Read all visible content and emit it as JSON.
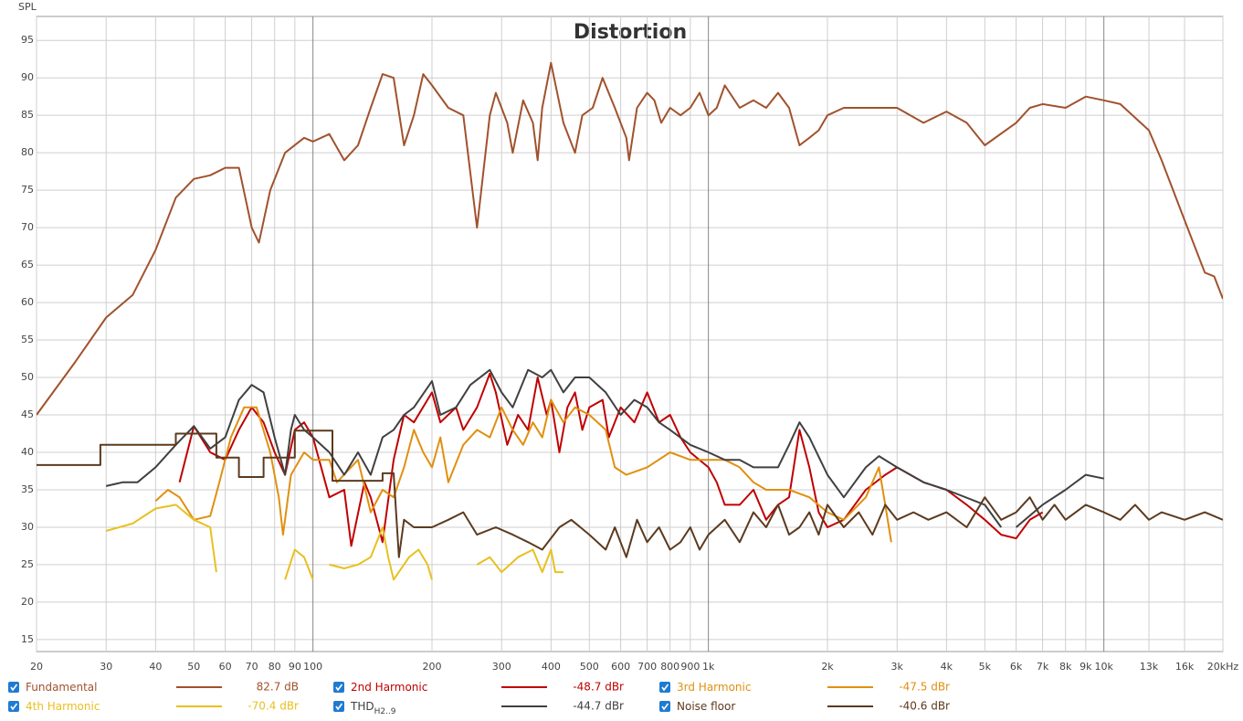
{
  "chart_data": {
    "type": "line",
    "title": "Distortion",
    "y_label": "SPL",
    "x_scale": "log",
    "xlim": [
      20,
      20000
    ],
    "ylim": [
      13.4,
      98.2
    ],
    "xticks": [
      20,
      30,
      40,
      50,
      60,
      70,
      80,
      90,
      100,
      200,
      300,
      400,
      500,
      600,
      700,
      800,
      900,
      {
        "value": 1000,
        "label": "1k"
      },
      {
        "value": 2000,
        "label": "2k"
      },
      {
        "value": 3000,
        "label": "3k"
      },
      {
        "value": 4000,
        "label": "4k"
      },
      {
        "value": 5000,
        "label": "5k"
      },
      {
        "value": 6000,
        "label": "6k"
      },
      {
        "value": 7000,
        "label": "7k"
      },
      {
        "value": 8000,
        "label": "8k"
      },
      {
        "value": 9000,
        "label": "9k"
      },
      {
        "value": 10000,
        "label": "10k"
      },
      {
        "value": 13000,
        "label": "13k"
      },
      {
        "value": 16000,
        "label": "16k"
      },
      {
        "value": 20000,
        "label": "20kHz"
      }
    ],
    "yticks": [
      15,
      20,
      25,
      30,
      35,
      40,
      45,
      50,
      55,
      60,
      65,
      70,
      75,
      80,
      85,
      90,
      95
    ],
    "grid": true,
    "series": [
      {
        "name": "Fundamental",
        "color": "#a0522d",
        "legend_value": "82.7 dB",
        "x": [
          20,
          25,
          30,
          35,
          40,
          45,
          50,
          55,
          60,
          65,
          70,
          73,
          78,
          85,
          95,
          100,
          110,
          120,
          130,
          140,
          150,
          160,
          170,
          180,
          190,
          200,
          220,
          240,
          260,
          280,
          290,
          310,
          320,
          340,
          360,
          370,
          380,
          400,
          430,
          460,
          480,
          510,
          540,
          580,
          620,
          630,
          660,
          700,
          730,
          760,
          800,
          850,
          900,
          950,
          1000,
          1050,
          1100,
          1200,
          1300,
          1400,
          1500,
          1600,
          1700,
          1800,
          1900,
          2000,
          2200,
          2500,
          3000,
          3500,
          4000,
          4500,
          5000,
          6000,
          6500,
          7000,
          8000,
          9000,
          10000,
          11000,
          13000,
          14000,
          16000,
          18000,
          19000,
          20000
        ],
        "values": [
          45,
          52,
          58,
          61,
          67,
          74,
          76.5,
          77,
          78,
          78,
          70,
          68,
          75,
          80,
          82,
          81.5,
          82.5,
          79,
          81,
          86,
          90.5,
          90,
          81,
          85,
          90.5,
          89,
          86,
          85,
          70,
          85,
          88,
          84,
          80,
          87,
          84,
          79,
          86,
          92,
          84,
          80,
          85,
          86,
          90,
          86,
          82,
          79,
          86,
          88,
          87,
          84,
          86,
          85,
          86,
          88,
          85,
          86,
          89,
          86,
          87,
          86,
          88,
          86,
          81,
          82,
          83,
          85,
          86,
          86,
          86,
          84,
          85.5,
          84,
          81,
          84,
          86,
          86.5,
          86,
          87.5,
          87,
          86.5,
          83,
          79,
          71,
          64,
          63.5,
          60.5
        ]
      },
      {
        "name": "2nd Harmonic",
        "color": "#c00000",
        "legend_value": "-48.7 dBr",
        "x": [
          46,
          50,
          55,
          60,
          65,
          70,
          75,
          80,
          85,
          90,
          95,
          100,
          110,
          120,
          125,
          135,
          140,
          150,
          160,
          170,
          180,
          200,
          210,
          230,
          240,
          260,
          280,
          290,
          310,
          330,
          350,
          370,
          390,
          400,
          420,
          440,
          460,
          480,
          500,
          540,
          560,
          600,
          650,
          700,
          750,
          800,
          850,
          900,
          1000,
          1050,
          1100,
          1200,
          1300,
          1400,
          1500,
          1600,
          1700,
          1800,
          1900,
          2000,
          2200,
          2500,
          2800,
          3000,
          3500,
          4000,
          4500,
          5000,
          5500,
          6000,
          6500,
          7000
        ],
        "values": [
          36,
          43.5,
          40,
          39,
          43,
          46,
          44,
          40,
          37,
          43,
          44,
          42,
          34,
          35,
          27.5,
          36,
          34,
          28,
          39,
          45,
          44,
          48,
          44,
          46,
          43,
          46,
          50.5,
          48,
          41,
          45,
          43,
          50,
          45,
          47,
          40,
          46,
          48,
          43,
          46,
          47,
          42,
          46,
          44,
          48,
          44,
          45,
          42,
          40,
          38,
          36,
          33,
          33,
          35,
          31,
          33,
          34,
          43,
          38,
          32,
          30,
          31,
          35,
          37,
          38,
          36,
          35,
          33,
          31,
          29,
          28.5,
          31,
          32
        ]
      },
      {
        "name": "3rd Harmonic",
        "color": "#e09010",
        "legend_value": "-47.5 dBr",
        "x": [
          40,
          43,
          46,
          50,
          55,
          58,
          62,
          67,
          72,
          78,
          82,
          84,
          88,
          95,
          100,
          110,
          115,
          130,
          140,
          150,
          160,
          170,
          180,
          190,
          200,
          210,
          220,
          240,
          260,
          280,
          300,
          320,
          340,
          360,
          380,
          400,
          430,
          460,
          500,
          550,
          580,
          620,
          700,
          800,
          900,
          1000,
          1100,
          1200,
          1300,
          1400,
          1600,
          1800,
          2000,
          2200,
          2500,
          2700,
          2800,
          2900
        ],
        "values": [
          33.5,
          35,
          34,
          31,
          31.5,
          36,
          42,
          46,
          46,
          40,
          34,
          29,
          37,
          40,
          39,
          39,
          36,
          39,
          32,
          35,
          34,
          38,
          43,
          40,
          38,
          42,
          36,
          41,
          43,
          42,
          46,
          43,
          41,
          44,
          42,
          47,
          44,
          46,
          45,
          43,
          38,
          37,
          38,
          40,
          39,
          39,
          39,
          38,
          36,
          35,
          35,
          34,
          32,
          31,
          34,
          38,
          33,
          28
        ]
      },
      {
        "name": "4th Harmonic",
        "color": "#e8c020",
        "legend_value": "-70.4 dBr",
        "x": [
          30,
          35,
          40,
          45,
          50,
          55,
          57,
          70,
          85,
          90,
          95,
          100,
          105,
          110,
          120,
          130,
          140,
          150,
          155,
          160,
          175,
          185,
          195,
          200,
          230,
          260,
          280,
          300,
          330,
          360,
          380,
          400,
          410,
          430
        ],
        "values": [
          29.5,
          30.5,
          32.5,
          33,
          31,
          30,
          24,
          null,
          23,
          27,
          26,
          23,
          null,
          25,
          24.5,
          25,
          26,
          30,
          26,
          23,
          26,
          27,
          25,
          23,
          null,
          25,
          26,
          24,
          26,
          27,
          24,
          27,
          24,
          24
        ]
      },
      {
        "name": "THD",
        "name_sub": "H2..9",
        "color": "#404040",
        "legend_value": "-44.7 dBr",
        "x": [
          30,
          33,
          36,
          40,
          45,
          50,
          55,
          60,
          65,
          70,
          75,
          80,
          85,
          88,
          90,
          95,
          100,
          110,
          120,
          130,
          140,
          150,
          160,
          170,
          180,
          200,
          210,
          230,
          250,
          280,
          300,
          320,
          350,
          380,
          400,
          430,
          460,
          500,
          550,
          600,
          650,
          700,
          750,
          800,
          900,
          1000,
          1100,
          1200,
          1300,
          1400,
          1500,
          1600,
          1700,
          1800,
          2000,
          2200,
          2500,
          2700,
          3000,
          3500,
          4000,
          5000,
          5500,
          5800,
          6000,
          7000,
          8000,
          9000,
          10000
        ],
        "values": [
          35.5,
          36,
          36,
          38,
          41,
          43.5,
          40.5,
          42,
          47,
          49,
          48,
          42,
          37,
          43,
          45,
          43,
          42,
          40,
          37,
          40,
          37,
          42,
          43,
          45,
          46,
          49.5,
          45,
          46,
          49,
          51,
          48,
          46,
          51,
          50,
          51,
          48,
          50,
          50,
          48,
          45,
          47,
          46,
          44,
          43,
          41,
          40,
          39,
          39,
          38,
          38,
          38,
          41,
          44,
          42,
          37,
          34,
          38,
          39.5,
          38,
          36,
          35,
          33,
          30,
          null,
          30,
          33,
          35,
          37,
          36.5
        ]
      },
      {
        "name": "Noise floor",
        "color": "#5c3a1e",
        "legend_value": "-40.6 dBr",
        "x": [
          20,
          29,
          29,
          45,
          45,
          57,
          57,
          65,
          65,
          75,
          75,
          90,
          90,
          112,
          112,
          150,
          150,
          160,
          165,
          170,
          180,
          200,
          220,
          240,
          260,
          290,
          320,
          350,
          380,
          420,
          450,
          500,
          550,
          580,
          620,
          660,
          700,
          750,
          800,
          850,
          900,
          950,
          1000,
          1100,
          1200,
          1300,
          1400,
          1500,
          1600,
          1700,
          1800,
          1900,
          2000,
          2200,
          2400,
          2600,
          2800,
          3000,
          3300,
          3600,
          4000,
          4500,
          5000,
          5500,
          6000,
          6500,
          7000,
          7500,
          8000,
          9000,
          10000,
          11000,
          12000,
          13000,
          14000,
          16000,
          18000,
          20000
        ],
        "values": [
          38.3,
          38.3,
          41,
          41,
          42.5,
          42.5,
          39.3,
          39.3,
          36.7,
          36.7,
          39.3,
          39.3,
          42.9,
          42.9,
          36.2,
          36.2,
          37.2,
          37.2,
          26,
          31,
          30,
          30,
          31,
          32,
          29,
          30,
          29,
          28,
          27,
          30,
          31,
          29,
          27,
          30,
          26,
          31,
          28,
          30,
          27,
          28,
          30,
          27,
          29,
          31,
          28,
          32,
          30,
          33,
          29,
          30,
          32,
          29,
          33,
          30,
          32,
          29,
          33,
          31,
          32,
          31,
          32,
          30,
          34,
          31,
          32,
          34,
          31,
          33,
          31,
          33,
          32,
          31,
          33,
          31,
          32,
          31,
          32,
          31
        ]
      }
    ]
  }
}
